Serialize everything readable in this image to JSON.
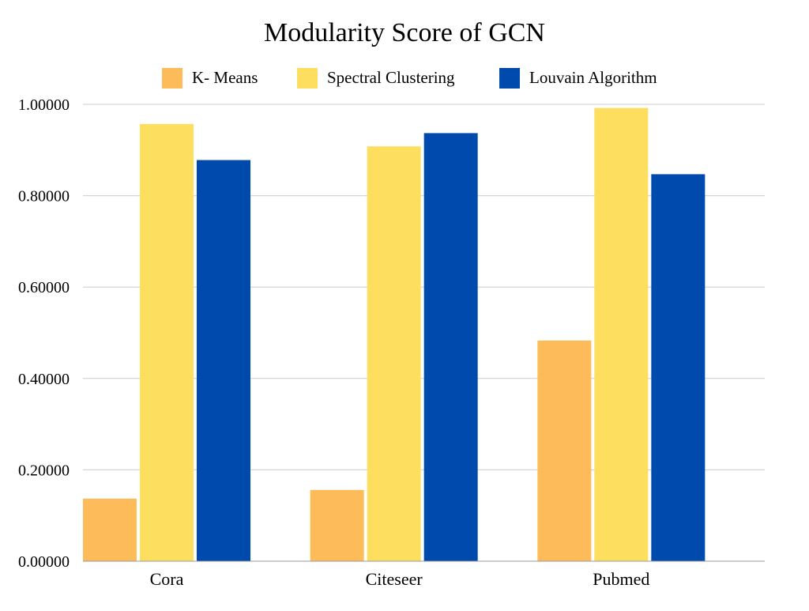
{
  "chart_data": {
    "type": "bar",
    "title": "Modularity Score of GCN",
    "xlabel": "",
    "ylabel": "",
    "categories": [
      "Cora",
      "Citeseer",
      "Pubmed"
    ],
    "series": [
      {
        "name": "K- Means",
        "color": "#FDBB5A",
        "values": [
          0.137,
          0.156,
          0.483
        ]
      },
      {
        "name": "Spectral Clustering",
        "color": "#FEDE5E",
        "values": [
          0.957,
          0.908,
          0.992
        ]
      },
      {
        "name": "Louvain Algorithm",
        "color": "#004AAD",
        "values": [
          0.878,
          0.937,
          0.847
        ]
      }
    ],
    "ylim": [
      0,
      1
    ],
    "yticks": [
      0,
      0.2,
      0.4,
      0.6,
      0.8,
      1.0
    ],
    "ytick_labels": [
      "0.00000",
      "0.20000",
      "0.40000",
      "0.60000",
      "0.80000",
      "1.00000"
    ],
    "grid": true,
    "legend_position": "top-center",
    "colors": {
      "gridline": "#cccccc",
      "axis": "#999999",
      "text": "#000000"
    }
  }
}
